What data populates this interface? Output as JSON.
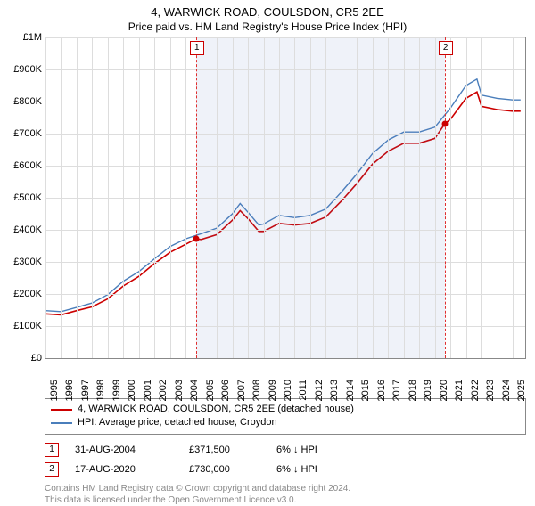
{
  "title": "4, WARWICK ROAD, COULSDON, CR5 2EE",
  "subtitle": "Price paid vs. HM Land Registry's House Price Index (HPI)",
  "chart": {
    "type": "line",
    "background_color": "#ffffff",
    "grid_color": "#dddddd",
    "border_color": "#888888",
    "shade_color": "rgba(100,130,200,0.10)",
    "shade_start_year": 2004.66,
    "shade_end_year": 2020.63,
    "xlim": [
      1995,
      2025.8
    ],
    "ylim": [
      0,
      1000000
    ],
    "ytick_step": 100000,
    "ytick_labels": [
      "£0",
      "£100K",
      "£200K",
      "£300K",
      "£400K",
      "£500K",
      "£600K",
      "£700K",
      "£800K",
      "£900K",
      "£1M"
    ],
    "xtick_years": [
      1995,
      1996,
      1997,
      1998,
      1999,
      2000,
      2001,
      2002,
      2003,
      2004,
      2005,
      2006,
      2007,
      2008,
      2009,
      2010,
      2011,
      2012,
      2013,
      2014,
      2015,
      2016,
      2017,
      2018,
      2019,
      2020,
      2021,
      2022,
      2023,
      2024,
      2025
    ],
    "tick_fontsize": 11,
    "series": [
      {
        "name": "property",
        "label": "4, WARWICK ROAD, COULSDON, CR5 2EE (detached house)",
        "color": "#cc0000",
        "line_width": 1.6,
        "data": [
          [
            1995,
            138000
          ],
          [
            1996,
            135000
          ],
          [
            1997,
            148000
          ],
          [
            1998,
            160000
          ],
          [
            1999,
            185000
          ],
          [
            2000,
            225000
          ],
          [
            2001,
            255000
          ],
          [
            2002,
            295000
          ],
          [
            2003,
            330000
          ],
          [
            2004,
            355000
          ],
          [
            2004.66,
            371500
          ],
          [
            2005,
            370000
          ],
          [
            2006,
            385000
          ],
          [
            2007,
            430000
          ],
          [
            2007.5,
            460000
          ],
          [
            2008,
            435000
          ],
          [
            2008.7,
            395000
          ],
          [
            2009,
            395000
          ],
          [
            2010,
            420000
          ],
          [
            2011,
            415000
          ],
          [
            2012,
            420000
          ],
          [
            2013,
            440000
          ],
          [
            2014,
            490000
          ],
          [
            2015,
            545000
          ],
          [
            2016,
            605000
          ],
          [
            2017,
            645000
          ],
          [
            2018,
            670000
          ],
          [
            2019,
            670000
          ],
          [
            2020,
            685000
          ],
          [
            2020.63,
            730000
          ],
          [
            2021,
            745000
          ],
          [
            2022,
            810000
          ],
          [
            2022.7,
            830000
          ],
          [
            2023,
            785000
          ],
          [
            2024,
            775000
          ],
          [
            2025,
            770000
          ],
          [
            2025.5,
            770000
          ]
        ]
      },
      {
        "name": "hpi",
        "label": "HPI: Average price, detached house, Croydon",
        "color": "#4a7ebb",
        "line_width": 1.4,
        "data": [
          [
            1995,
            148000
          ],
          [
            1996,
            145000
          ],
          [
            1997,
            158000
          ],
          [
            1998,
            172000
          ],
          [
            1999,
            198000
          ],
          [
            2000,
            240000
          ],
          [
            2001,
            270000
          ],
          [
            2002,
            310000
          ],
          [
            2003,
            348000
          ],
          [
            2004,
            372000
          ],
          [
            2005,
            388000
          ],
          [
            2006,
            405000
          ],
          [
            2007,
            450000
          ],
          [
            2007.5,
            482000
          ],
          [
            2008,
            455000
          ],
          [
            2008.7,
            415000
          ],
          [
            2009,
            418000
          ],
          [
            2010,
            445000
          ],
          [
            2011,
            438000
          ],
          [
            2012,
            445000
          ],
          [
            2013,
            465000
          ],
          [
            2014,
            518000
          ],
          [
            2015,
            575000
          ],
          [
            2016,
            638000
          ],
          [
            2017,
            680000
          ],
          [
            2018,
            705000
          ],
          [
            2019,
            705000
          ],
          [
            2020,
            720000
          ],
          [
            2021,
            780000
          ],
          [
            2022,
            850000
          ],
          [
            2022.7,
            870000
          ],
          [
            2023,
            820000
          ],
          [
            2024,
            810000
          ],
          [
            2025,
            805000
          ],
          [
            2025.5,
            805000
          ]
        ]
      }
    ],
    "sale_markers": [
      {
        "n": "1",
        "year": 2004.66,
        "price": 371500
      },
      {
        "n": "2",
        "year": 2020.63,
        "price": 730000
      }
    ]
  },
  "legend": {
    "border_color": "#888888"
  },
  "sales": [
    {
      "n": "1",
      "date": "31-AUG-2004",
      "price": "£371,500",
      "diff": "6% ↓ HPI"
    },
    {
      "n": "2",
      "date": "17-AUG-2020",
      "price": "£730,000",
      "diff": "6% ↓ HPI"
    }
  ],
  "footnote_line1": "Contains HM Land Registry data © Crown copyright and database right 2024.",
  "footnote_line2": "This data is licensed under the Open Government Licence v3.0."
}
